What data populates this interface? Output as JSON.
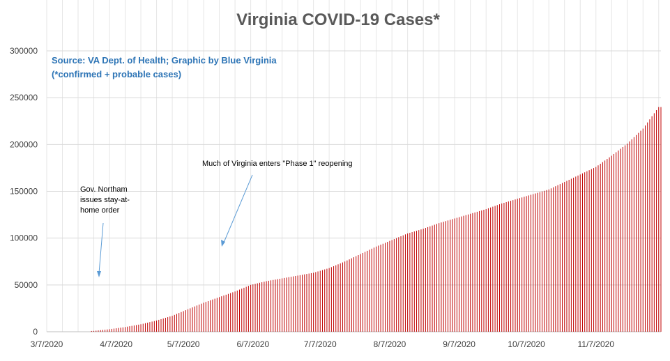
{
  "chart_data": {
    "type": "bar",
    "title": "Virginia COVID-19 Cases*",
    "source_line1": "Source: VA Dept. of Health; Graphic by Blue Virginia",
    "source_line2": "(*confirmed + probable cases)",
    "xlabel": "",
    "ylabel": "",
    "ylim": [
      0,
      300000
    ],
    "y_ticks": [
      "0",
      "50000",
      "100000",
      "150000",
      "200000",
      "250000",
      "300000"
    ],
    "x_range": [
      "2020-03-07",
      "2020-12-06"
    ],
    "x_tick_labels": [
      "3/7/2020",
      "4/7/2020",
      "5/7/2020",
      "6/7/2020",
      "7/7/2020",
      "8/7/2020",
      "9/7/2020",
      "10/7/2020",
      "11/7/2020"
    ],
    "x_tick_dates": [
      "2020-03-07",
      "2020-04-07",
      "2020-05-07",
      "2020-06-07",
      "2020-07-07",
      "2020-08-07",
      "2020-09-07",
      "2020-10-07",
      "2020-11-07"
    ],
    "grid": true,
    "bar_color": "#c00000",
    "series": [
      {
        "x": [
          "2020-03-07",
          "2020-03-14",
          "2020-03-21",
          "2020-03-28",
          "2020-04-04",
          "2020-04-11",
          "2020-04-18",
          "2020-04-25",
          "2020-05-02",
          "2020-05-09",
          "2020-05-16",
          "2020-05-23",
          "2020-05-30",
          "2020-06-06",
          "2020-06-13",
          "2020-06-20",
          "2020-06-27",
          "2020-07-04",
          "2020-07-11",
          "2020-07-18",
          "2020-07-25",
          "2020-08-01",
          "2020-08-08",
          "2020-08-15",
          "2020-08-22",
          "2020-08-29",
          "2020-09-05",
          "2020-09-12",
          "2020-09-19",
          "2020-09-26",
          "2020-10-03",
          "2020-10-10",
          "2020-10-17",
          "2020-10-24",
          "2020-10-31",
          "2020-11-07",
          "2020-11-14",
          "2020-11-21",
          "2020-11-28",
          "2020-12-05"
        ],
        "values": [
          0,
          30,
          200,
          900,
          2700,
          5000,
          8000,
          12000,
          17000,
          24000,
          31000,
          37000,
          43000,
          50000,
          54000,
          57000,
          60000,
          63000,
          68000,
          75000,
          83000,
          91000,
          98000,
          105000,
          110000,
          116000,
          121000,
          126000,
          131000,
          137000,
          142000,
          147000,
          152000,
          160000,
          168000,
          176000,
          188000,
          201000,
          217000,
          240000
        ]
      }
    ],
    "annotations": [
      {
        "lines": [
          "Gov. Northam",
          "issues stay-at-",
          "home order"
        ],
        "date": "2020-03-30"
      },
      {
        "lines": [
          "Much of Virginia enters \"Phase 1\" reopening"
        ],
        "date": "2020-05-15"
      }
    ]
  }
}
